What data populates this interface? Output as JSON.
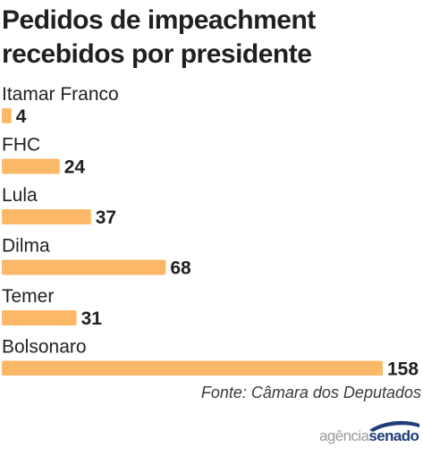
{
  "chart_data": {
    "type": "bar",
    "orientation": "horizontal",
    "title": [
      "Pedidos de impeachment",
      "recebidos por presidente"
    ],
    "categories": [
      "Itamar Franco",
      "FHC",
      "Lula",
      "Dilma",
      "Temer",
      "Bolsonaro"
    ],
    "values": [
      4,
      24,
      37,
      68,
      31,
      158
    ],
    "value_labels": [
      "4",
      "24",
      "37",
      "68",
      "31",
      "158"
    ],
    "xlim": [
      0,
      158
    ],
    "grid": false,
    "bar_color": "#fbb868"
  },
  "source": "Fonte: Câmara dos Deputados",
  "logo": {
    "text_light": "agência",
    "text_bold": "senado",
    "colors": {
      "light": "#9b9b9b",
      "bold": "#1f3d7a"
    }
  }
}
